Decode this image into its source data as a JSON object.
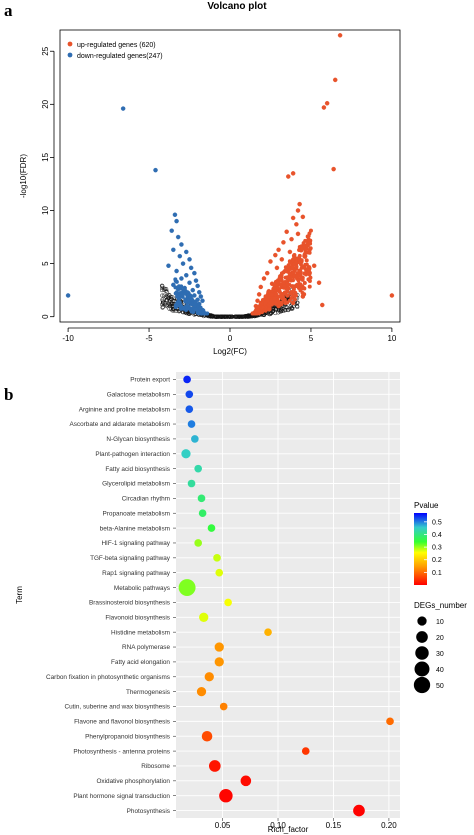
{
  "panels": {
    "a": {
      "letter": "a"
    },
    "b": {
      "letter": "b"
    }
  },
  "chart_data": [
    {
      "type": "scatter",
      "title": "Volcano plot",
      "xlabel": "Log2(FC)",
      "ylabel": "-log10(FDR)",
      "xlim": [
        -10.5,
        10.5
      ],
      "ylim": [
        -0.5,
        27
      ],
      "xticks": [
        -10,
        -5,
        0,
        5,
        10
      ],
      "yticks": [
        0,
        5,
        10,
        15,
        20,
        25
      ],
      "legend_position": "top-left",
      "legend": [
        {
          "label": "up-regulated genes (620)",
          "color": "#e8532b"
        },
        {
          "label": "down-regulated genes(247)",
          "color": "#2f6db2"
        }
      ],
      "series": [
        {
          "name": "up-regulated genes (620)",
          "color": "#e8532b",
          "points": [
            [
              6.8,
              26.5
            ],
            [
              6.5,
              22.3
            ],
            [
              5.8,
              19.7
            ],
            [
              6.0,
              20.1
            ],
            [
              6.4,
              13.9
            ],
            [
              3.9,
              13.5
            ],
            [
              3.6,
              13.2
            ],
            [
              4.3,
              10.6
            ],
            [
              4.2,
              10.0
            ],
            [
              4.5,
              9.4
            ],
            [
              3.9,
              9.3
            ],
            [
              4.1,
              8.7
            ],
            [
              3.5,
              8.0
            ],
            [
              4.2,
              7.8
            ],
            [
              3.8,
              7.3
            ],
            [
              3.3,
              7.0
            ],
            [
              4.4,
              6.6
            ],
            [
              3.0,
              6.3
            ],
            [
              3.7,
              6.1
            ],
            [
              2.8,
              5.8
            ],
            [
              4.6,
              5.7
            ],
            [
              3.2,
              5.4
            ],
            [
              2.5,
              5.2
            ],
            [
              4.0,
              5.0
            ],
            [
              5.2,
              4.8
            ],
            [
              2.9,
              4.6
            ],
            [
              3.4,
              4.3
            ],
            [
              2.3,
              4.1
            ],
            [
              4.7,
              4.0
            ],
            [
              3.1,
              3.8
            ],
            [
              2.1,
              3.6
            ],
            [
              3.6,
              3.5
            ],
            [
              5.5,
              3.2
            ],
            [
              2.6,
              3.1
            ],
            [
              4.1,
              2.9
            ],
            [
              1.9,
              2.8
            ],
            [
              3.0,
              2.6
            ],
            [
              2.4,
              2.4
            ],
            [
              3.8,
              2.3
            ],
            [
              1.8,
              2.1
            ],
            [
              2.8,
              2.0
            ],
            [
              4.5,
              1.9
            ],
            [
              2.2,
              1.7
            ],
            [
              3.3,
              1.6
            ],
            [
              1.7,
              1.5
            ],
            [
              2.6,
              1.4
            ],
            [
              3.9,
              1.3
            ],
            [
              2.0,
              1.2
            ],
            [
              5.7,
              1.1
            ],
            [
              3.0,
              1.0
            ],
            [
              1.6,
              1.0
            ],
            [
              2.4,
              0.9
            ],
            [
              10.0,
              2.0
            ]
          ]
        },
        {
          "name": "down-regulated genes(247)",
          "color": "#2f6db2",
          "points": [
            [
              -6.6,
              19.6
            ],
            [
              -4.6,
              13.8
            ],
            [
              -3.4,
              9.6
            ],
            [
              -3.3,
              9.0
            ],
            [
              -3.6,
              8.1
            ],
            [
              -3.2,
              7.5
            ],
            [
              -3.0,
              6.8
            ],
            [
              -3.5,
              6.3
            ],
            [
              -2.7,
              6.1
            ],
            [
              -3.1,
              5.7
            ],
            [
              -2.5,
              5.4
            ],
            [
              -2.9,
              5.0
            ],
            [
              -3.8,
              4.8
            ],
            [
              -2.4,
              4.6
            ],
            [
              -3.3,
              4.3
            ],
            [
              -2.2,
              4.1
            ],
            [
              -2.7,
              3.9
            ],
            [
              -3.0,
              3.6
            ],
            [
              -2.1,
              3.4
            ],
            [
              -2.5,
              3.2
            ],
            [
              -3.5,
              3.0
            ],
            [
              -2.0,
              2.9
            ],
            [
              -2.8,
              2.7
            ],
            [
              -2.3,
              2.5
            ],
            [
              -1.9,
              2.3
            ],
            [
              -3.1,
              2.2
            ],
            [
              -2.2,
              2.0
            ],
            [
              -1.8,
              1.9
            ],
            [
              -2.6,
              1.7
            ],
            [
              -2.0,
              1.6
            ],
            [
              -1.7,
              1.5
            ],
            [
              -2.4,
              1.3
            ],
            [
              -1.9,
              1.2
            ],
            [
              -10.0,
              2.0
            ]
          ]
        }
      ]
    },
    {
      "type": "scatter",
      "xlabel": "Rich_factor",
      "ylabel": "Term",
      "xlim": [
        0.008,
        0.21
      ],
      "xticks": [
        0.05,
        0.1,
        0.15,
        0.2
      ],
      "xtick_labels": [
        "0.05",
        "0.10",
        "0.15",
        "0.20"
      ],
      "color_legend": {
        "title": "Pvalue",
        "ticks": [
          "0.5",
          "0.4",
          "0.3",
          "0.2",
          "0.1"
        ],
        "min": 0.0,
        "max": 0.57
      },
      "size_legend": {
        "title": "DEGs_number",
        "values": [
          10,
          20,
          30,
          40,
          50
        ]
      },
      "legend_position": "right",
      "terms": [
        "Protein export",
        "Galactose metabolism",
        "Arginine and proline metabolism",
        "Ascorbate and aldarate metabolism",
        "N-Glycan biosynthesis",
        "Plant-pathogen interaction",
        "Fatty acid biosynthesis",
        "Glycerolipid metabolism",
        "Circadian rhythm",
        "Propanoate metabolism",
        "beta-Alanine metabolism",
        "HIF-1 signaling pathway",
        "TGF-beta signaling pathway",
        "Rap1 signaling pathway",
        "Metabolic pathways",
        "Brassinosteroid biosynthesis",
        "Flavonoid biosynthesis",
        "Histidine metabolism",
        "RNA polymerase",
        "Fatty acid elongation",
        "Carbon fixation in photosynthetic organisms",
        "Thermogenesis",
        "Cutin, suberine and wax biosynthesis",
        "Flavone and flavonol biosynthesis",
        "Phenylpropanoid biosynthesis",
        "Photosynthesis - antenna proteins",
        "Ribosome",
        "Oxidative phosphorylation",
        "Plant hormone signal transduction",
        "Photosynthesis"
      ],
      "rich_factor": [
        0.018,
        0.02,
        0.02,
        0.022,
        0.025,
        0.017,
        0.028,
        0.022,
        0.031,
        0.032,
        0.04,
        0.028,
        0.045,
        0.047,
        0.018,
        0.055,
        0.033,
        0.091,
        0.047,
        0.047,
        0.038,
        0.031,
        0.051,
        0.201,
        0.036,
        0.125,
        0.043,
        0.071,
        0.053,
        0.173
      ],
      "pvalue": [
        0.55,
        0.53,
        0.52,
        0.5,
        0.47,
        0.45,
        0.43,
        0.42,
        0.39,
        0.38,
        0.35,
        0.3,
        0.28,
        0.27,
        0.31,
        0.26,
        0.27,
        0.17,
        0.14,
        0.14,
        0.13,
        0.13,
        0.12,
        0.1,
        0.07,
        0.05,
        0.02,
        0.01,
        0.005,
        0.002
      ],
      "degs_number": [
        5,
        5,
        5,
        5,
        5,
        10,
        5,
        5,
        5,
        5,
        5,
        5,
        5,
        5,
        55,
        5,
        10,
        5,
        10,
        10,
        10,
        10,
        5,
        5,
        15,
        5,
        20,
        15,
        30,
        20
      ]
    }
  ]
}
